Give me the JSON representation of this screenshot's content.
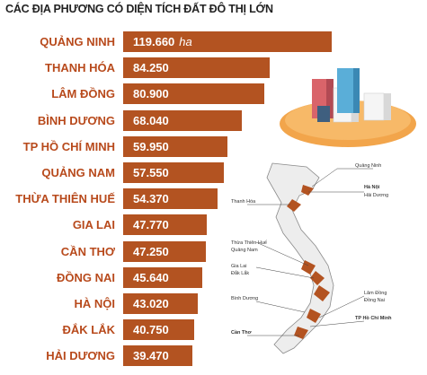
{
  "colors": {
    "bar": "#b35321",
    "label": "#b84a1c",
    "title": "#222222"
  },
  "chart_data": {
    "type": "bar",
    "orientation": "horizontal",
    "title": "CÁC ĐỊA PHƯƠNG CÓ DIỆN TÍCH ĐẤT ĐÔ THỊ LỚN",
    "unit": "ha",
    "categories": [
      "QUẢNG NINH",
      "THANH HÓA",
      "LÂM ĐỒNG",
      "BÌNH DƯƠNG",
      "TP HỒ CHÍ MINH",
      "QUẢNG NAM",
      "THỪA THIÊN HUẾ",
      "GIA LAI",
      "CẦN THƠ",
      "ĐỒNG NAI",
      "HÀ NỘI",
      "ĐẮK LẮK",
      "HẢI DƯƠNG"
    ],
    "values": [
      119660,
      84250,
      80900,
      68040,
      59950,
      57550,
      54370,
      47770,
      47250,
      45640,
      43020,
      40750,
      39470
    ],
    "value_labels": [
      "119.660",
      "84.250",
      "80.900",
      "68.040",
      "59.950",
      "57.550",
      "54.370",
      "47.770",
      "47.250",
      "45.640",
      "43.020",
      "40.750",
      "39.470"
    ]
  },
  "map_labels": [
    "Quảng Ninh",
    "Hà Nội",
    "Hải Dương",
    "Thanh Hóa",
    "Thừa Thiên Huế",
    "Quảng Nam",
    "Gia Lai",
    "Đắk Lắk",
    "Bình Dương",
    "Lâm Đồng",
    "Đồng Nai",
    "TP Hồ Chí Minh",
    "Cần Thơ"
  ]
}
